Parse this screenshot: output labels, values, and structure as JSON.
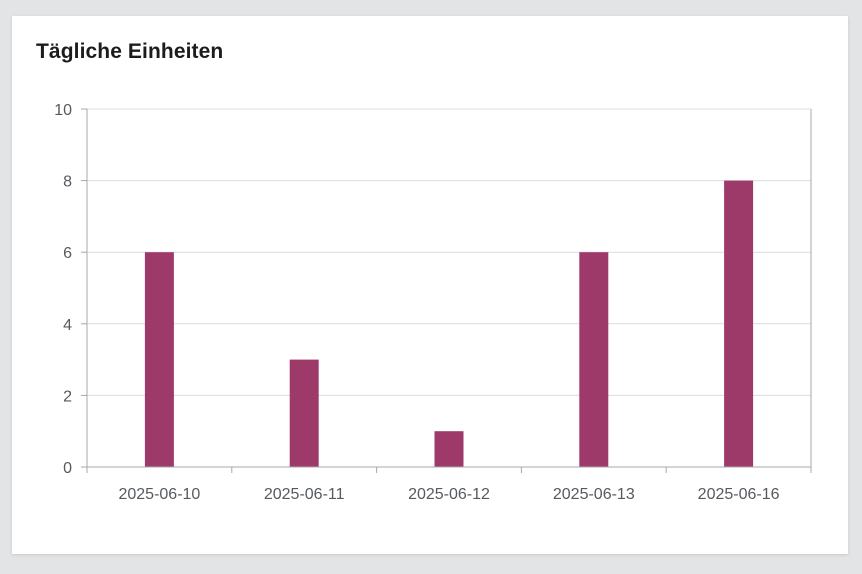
{
  "card": {
    "title": "Tägliche Einheiten"
  },
  "chart_data": {
    "type": "bar",
    "title": "Tägliche Einheiten",
    "xlabel": "",
    "ylabel": "",
    "categories": [
      "2025-06-10",
      "2025-06-11",
      "2025-06-12",
      "2025-06-13",
      "2025-06-16"
    ],
    "values": [
      6,
      3,
      1,
      6,
      8
    ],
    "ylim": [
      0,
      10
    ],
    "yticks": [
      0,
      2,
      4,
      6,
      8,
      10
    ],
    "grid": true,
    "legend": "none",
    "colors": {
      "bar": "#9e3a69",
      "grid": "#dcdcdc",
      "axis": "#a8a8a8",
      "tick_text": "#555a60"
    }
  }
}
